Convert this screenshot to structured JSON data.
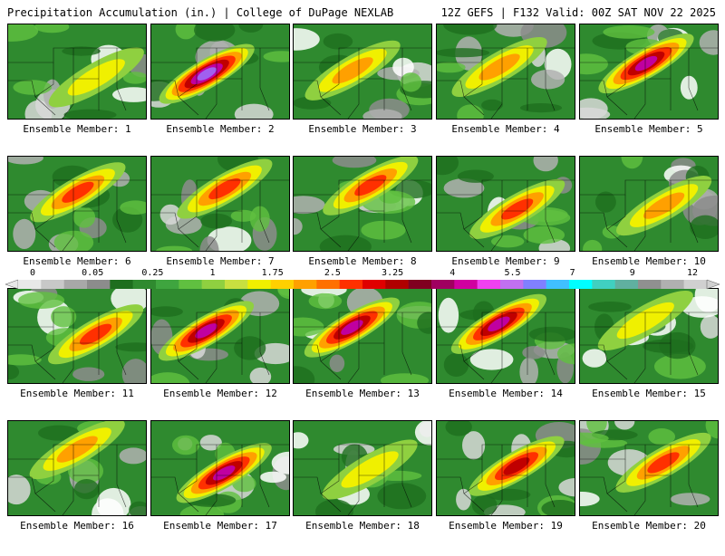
{
  "header": {
    "title": "Precipitation Accumulation (in.) | College of DuPage NEXLAB",
    "run_info": "12Z GEFS | F132 Valid: 00Z SAT NOV 22 2025"
  },
  "members": [
    {
      "label": "Ensemble Member: 1",
      "intensity": 0.35
    },
    {
      "label": "Ensemble Member: 2",
      "intensity": 0.95
    },
    {
      "label": "Ensemble Member: 3",
      "intensity": 0.45
    },
    {
      "label": "Ensemble Member: 4",
      "intensity": 0.4
    },
    {
      "label": "Ensemble Member: 5",
      "intensity": 0.8
    },
    {
      "label": "Ensemble Member: 6",
      "intensity": 0.55
    },
    {
      "label": "Ensemble Member: 7",
      "intensity": 0.55
    },
    {
      "label": "Ensemble Member: 8",
      "intensity": 0.5
    },
    {
      "label": "Ensemble Member: 9",
      "intensity": 0.55
    },
    {
      "label": "Ensemble Member: 10",
      "intensity": 0.45
    },
    {
      "label": "Ensemble Member: 11",
      "intensity": 0.5
    },
    {
      "label": "Ensemble Member: 12",
      "intensity": 0.85
    },
    {
      "label": "Ensemble Member: 13",
      "intensity": 0.9
    },
    {
      "label": "Ensemble Member: 14",
      "intensity": 0.9
    },
    {
      "label": "Ensemble Member: 15",
      "intensity": 0.35
    },
    {
      "label": "Ensemble Member: 16",
      "intensity": 0.45
    },
    {
      "label": "Ensemble Member: 17",
      "intensity": 0.8
    },
    {
      "label": "Ensemble Member: 18",
      "intensity": 0.35
    },
    {
      "label": "Ensemble Member: 19",
      "intensity": 0.7
    },
    {
      "label": "Ensemble Member: 20",
      "intensity": 0.5
    }
  ],
  "colorbar": {
    "labels": [
      "0",
      "0.05",
      "0.25",
      "1",
      "1.75",
      "2.5",
      "3.25",
      "4",
      "5.5",
      "7",
      "9",
      "12"
    ],
    "colors": [
      "#e8e8e8",
      "#c8c8c8",
      "#a8a8a8",
      "#8c8c8c",
      "#1e6e1e",
      "#2f8a2f",
      "#3fa53f",
      "#60c040",
      "#8fd040",
      "#c8e040",
      "#f0f000",
      "#ffd000",
      "#ffa000",
      "#ff7000",
      "#ff3000",
      "#e00000",
      "#b00000",
      "#800020",
      "#a00060",
      "#d000a0",
      "#f040f0",
      "#c070f0",
      "#8080ff",
      "#40c0ff",
      "#00ffff",
      "#40d0c0",
      "#60b0a0",
      "#909090",
      "#b0b0b0",
      "#d0d0d0"
    ]
  }
}
